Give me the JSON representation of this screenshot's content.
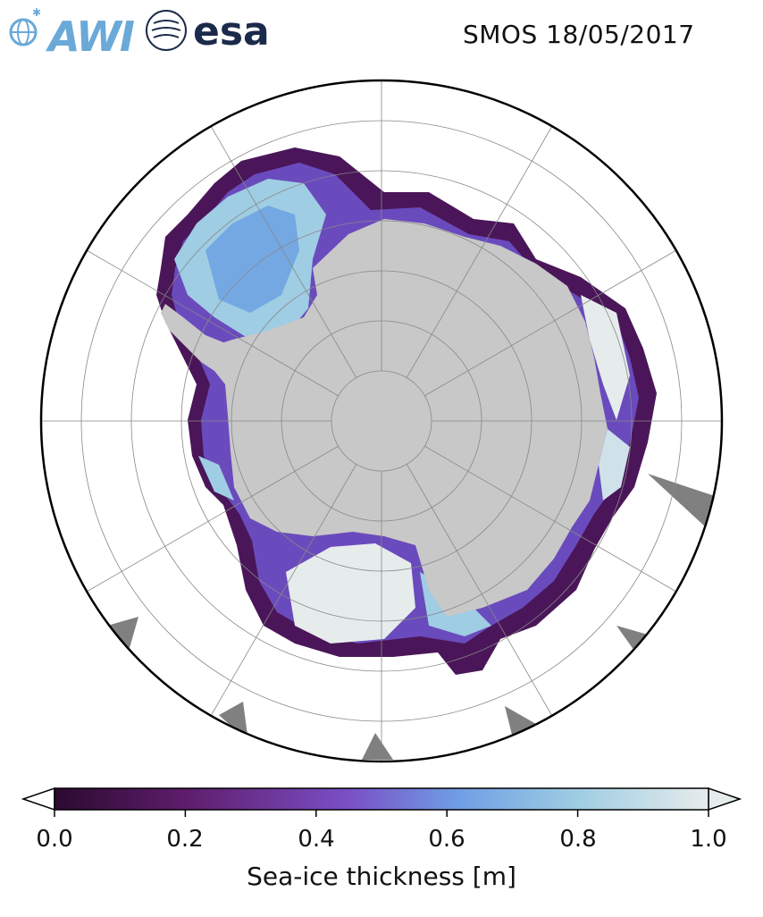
{
  "header": {
    "date_label": "SMOS 18/05/2017",
    "logo_awi_text": "AWI",
    "logo_esa_text": "esa"
  },
  "map": {
    "projection": "south-polar-stereographic",
    "colors": {
      "land": "#c8c8c8",
      "ocean": "#ffffff",
      "missing_data": "#808080",
      "gridlines": "#888888",
      "boundary": "#000000"
    },
    "colormap": {
      "name": "dense-style",
      "stops": [
        "#2b0a2f",
        "#5e1d6b",
        "#7a4fc6",
        "#6f9fe5",
        "#9fcde3",
        "#e6ecec"
      ]
    }
  },
  "colorbar": {
    "label": "Sea-ice thickness [m]",
    "min": 0.0,
    "max": 1.0,
    "extend": "both",
    "ticks": [
      "0.0",
      "0.2",
      "0.4",
      "0.6",
      "0.8",
      "1.0"
    ]
  }
}
